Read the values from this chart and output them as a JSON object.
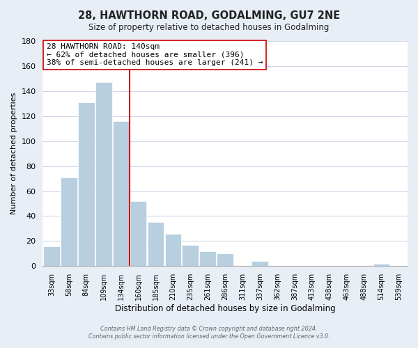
{
  "title": "28, HAWTHORN ROAD, GODALMING, GU7 2NE",
  "subtitle": "Size of property relative to detached houses in Godalming",
  "xlabel": "Distribution of detached houses by size in Godalming",
  "ylabel": "Number of detached properties",
  "bar_labels": [
    "33sqm",
    "58sqm",
    "84sqm",
    "109sqm",
    "134sqm",
    "160sqm",
    "185sqm",
    "210sqm",
    "235sqm",
    "261sqm",
    "286sqm",
    "311sqm",
    "337sqm",
    "362sqm",
    "387sqm",
    "413sqm",
    "438sqm",
    "463sqm",
    "488sqm",
    "514sqm",
    "539sqm"
  ],
  "bar_values": [
    16,
    71,
    131,
    147,
    116,
    52,
    35,
    26,
    17,
    12,
    10,
    0,
    4,
    0,
    0,
    0,
    0,
    0,
    0,
    2,
    0
  ],
  "bar_color": "#b8cfe0",
  "vline_bar_index": 4,
  "vline_color": "#cc0000",
  "ylim": [
    0,
    180
  ],
  "yticks": [
    0,
    20,
    40,
    60,
    80,
    100,
    120,
    140,
    160,
    180
  ],
  "annotation_title": "28 HAWTHORN ROAD: 140sqm",
  "annotation_line1": "← 62% of detached houses are smaller (396)",
  "annotation_line2": "38% of semi-detached houses are larger (241) →",
  "annotation_box_facecolor": "#ffffff",
  "annotation_box_edgecolor": "#cc0000",
  "footer_line1": "Contains HM Land Registry data © Crown copyright and database right 2024.",
  "footer_line2": "Contains public sector information licensed under the Open Government Licence v3.0.",
  "fig_background_color": "#e8eef5",
  "plot_background_color": "#ffffff",
  "grid_color": "#d0d8e8"
}
